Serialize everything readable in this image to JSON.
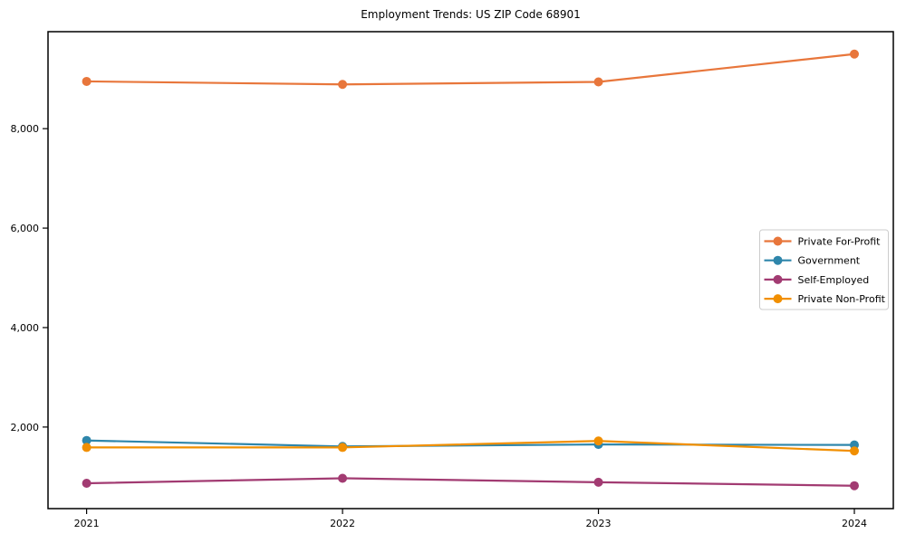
{
  "figure": {
    "background": "#ffffff"
  },
  "chart_data": {
    "type": "line",
    "title": "Employment Trends: US ZIP Code 68901",
    "xlabel": "",
    "ylabel": "",
    "x": [
      "2021",
      "2022",
      "2023",
      "2024"
    ],
    "series": [
      {
        "name": "Private For-Profit",
        "color": "#E8763B",
        "values": [
          8950,
          8890,
          8940,
          9500
        ]
      },
      {
        "name": "Government",
        "color": "#2E86AB",
        "values": [
          1730,
          1610,
          1650,
          1640
        ]
      },
      {
        "name": "Self-Employed",
        "color": "#A23B72",
        "values": [
          870,
          970,
          890,
          820
        ]
      },
      {
        "name": "Private Non-Profit",
        "color": "#F18F01",
        "values": [
          1590,
          1590,
          1720,
          1520
        ]
      }
    ],
    "yticks": [
      2000,
      4000,
      6000,
      8000
    ],
    "ytick_labels": [
      "2,000",
      "4,000",
      "6,000",
      "8,000"
    ],
    "ylim": [
      360,
      9950
    ],
    "grid": false,
    "legend": {
      "position": "center-right-inside",
      "border_color": "#cccccc",
      "labels": [
        "Private For-Profit",
        "Government",
        "Self-Employed",
        "Private Non-Profit"
      ]
    },
    "marker": "o",
    "axis_color": "#000000",
    "tick_label_color": "#000000"
  }
}
